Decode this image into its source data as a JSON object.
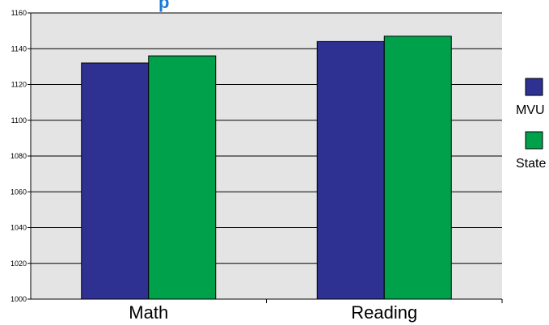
{
  "chart_data": {
    "type": "bar",
    "title_fragment": "p",
    "categories": [
      "Math",
      "Reading"
    ],
    "series": [
      {
        "name": "MVU",
        "values": [
          1132,
          1144
        ],
        "color": "#2e3192"
      },
      {
        "name": "State",
        "values": [
          1136,
          1147
        ],
        "color": "#00a14b"
      }
    ],
    "ylim": [
      1000,
      1160
    ],
    "yticks": [
      1000,
      1020,
      1040,
      1060,
      1080,
      1100,
      1120,
      1140,
      1160
    ],
    "grid": true,
    "legend_position": "right",
    "plot_background": "#e4e4e4"
  }
}
